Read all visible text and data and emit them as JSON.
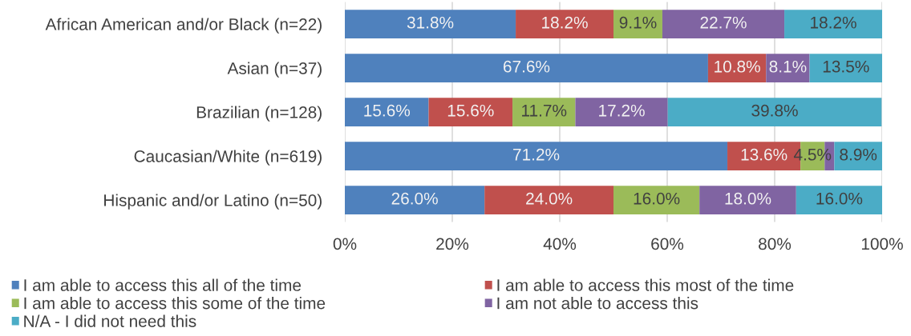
{
  "chart_data": {
    "type": "bar",
    "orientation": "horizontal",
    "stacked": true,
    "categories": [
      "African American and/or Black (n=22)",
      "Asian (n=37)",
      "Brazilian (n=128)",
      "Caucasian/White (n=619)",
      "Hispanic and/or Latino (n=50)"
    ],
    "series": [
      {
        "name": "I am able to access this all of the time",
        "color": "#4f81bd",
        "values": [
          31.8,
          67.6,
          15.6,
          71.2,
          26.0
        ],
        "value_labels": [
          "31.8%",
          "67.6%",
          "15.6%",
          "71.2%",
          "26.0%"
        ]
      },
      {
        "name": "I am able to access this most of the time",
        "color": "#c0504d",
        "values": [
          18.2,
          10.8,
          15.6,
          13.6,
          24.0
        ],
        "value_labels": [
          "18.2%",
          "10.8%",
          "15.6%",
          "13.6%",
          "24.0%"
        ]
      },
      {
        "name": "I am able to access this some of the time",
        "color": "#9bbb59",
        "values": [
          9.1,
          null,
          11.7,
          4.5,
          16.0
        ],
        "value_labels": [
          "9.1%",
          null,
          "11.7%",
          "4.5%",
          "16.0%"
        ]
      },
      {
        "name": "I am not able to access this",
        "color": "#8064a2",
        "values": [
          22.7,
          8.1,
          17.2,
          1.8,
          18.0
        ],
        "value_labels": [
          "22.7%",
          "8.1%",
          "17.2%",
          null,
          "18.0%"
        ]
      },
      {
        "name": "N/A - I did not need this",
        "color": "#4bacc6",
        "values": [
          18.2,
          13.5,
          39.8,
          8.9,
          16.0
        ],
        "value_labels": [
          "18.2%",
          "13.5%",
          "39.8%",
          "8.9%",
          "16.0%"
        ]
      }
    ],
    "xlim": [
      0,
      100
    ],
    "xticks": [
      {
        "value": 0,
        "label": "0%"
      },
      {
        "value": 20,
        "label": "20%"
      },
      {
        "value": 40,
        "label": "40%"
      },
      {
        "value": 60,
        "label": "60%"
      },
      {
        "value": 80,
        "label": "80%"
      },
      {
        "value": 100,
        "label": "100%"
      }
    ],
    "grid": "x",
    "legend": "bottom"
  }
}
